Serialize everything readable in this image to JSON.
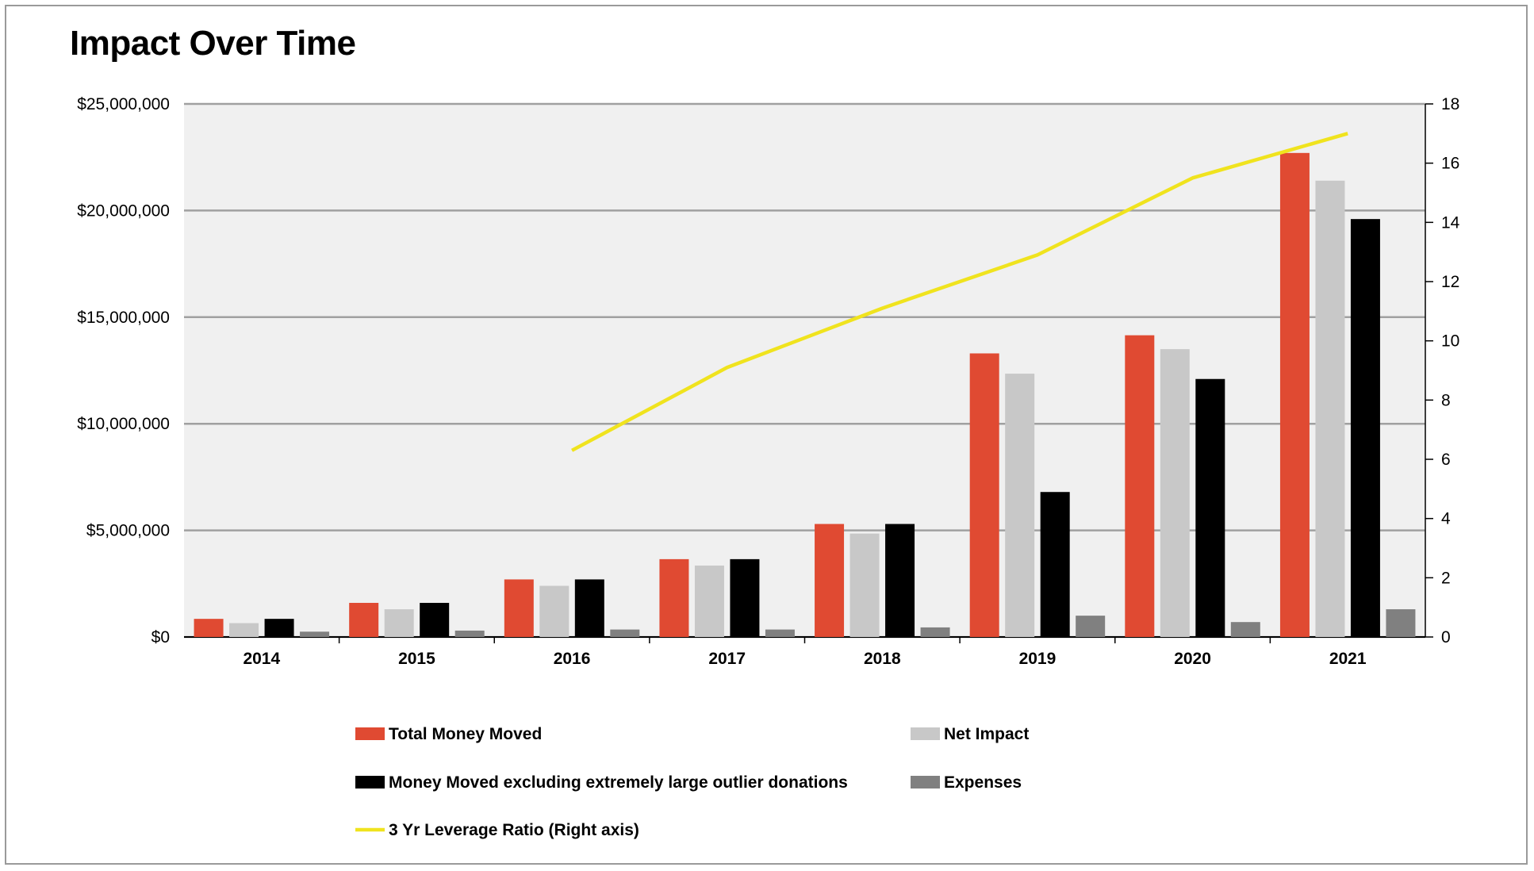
{
  "title": "Impact Over Time",
  "chart_data": {
    "type": "bar",
    "title": "Impact Over Time",
    "categories": [
      "2014",
      "2015",
      "2016",
      "2017",
      "2018",
      "2019",
      "2020",
      "2021"
    ],
    "series": [
      {
        "name": "Total Money Moved",
        "color": "#e04a32",
        "values": [
          850000,
          1600000,
          2700000,
          3650000,
          5300000,
          13300000,
          14150000,
          22700000
        ]
      },
      {
        "name": "Net Impact",
        "color": "#c8c8c8",
        "values": [
          650000,
          1300000,
          2400000,
          3350000,
          4850000,
          12350000,
          13500000,
          21400000
        ]
      },
      {
        "name": "Money Moved excluding extremely large outlier donations",
        "color": "#000000",
        "values": [
          850000,
          1600000,
          2700000,
          3650000,
          5300000,
          6800000,
          12100000,
          19600000
        ]
      },
      {
        "name": "Expenses",
        "color": "#808080",
        "values": [
          250000,
          300000,
          350000,
          350000,
          450000,
          1000000,
          700000,
          1300000
        ]
      }
    ],
    "line_series": {
      "name": "3 Yr Leverage Ratio (Right axis)",
      "color": "#f0e31e",
      "axis": "right",
      "values": [
        null,
        null,
        6.3,
        9.1,
        11.1,
        12.9,
        15.5,
        17.0
      ]
    },
    "y_left": {
      "ylim": [
        0,
        25000000
      ],
      "ticks": [
        "$0",
        "$5,000,000",
        "$10,000,000",
        "$15,000,000",
        "$20,000,000",
        "$25,000,000"
      ]
    },
    "y_right": {
      "ylim": [
        0,
        18
      ],
      "ticks": [
        "0",
        "2",
        "4",
        "6",
        "8",
        "10",
        "12",
        "14",
        "16",
        "18"
      ]
    },
    "grid": true,
    "plot_background": "#f0f0f0",
    "legend_placement": "bottom"
  }
}
